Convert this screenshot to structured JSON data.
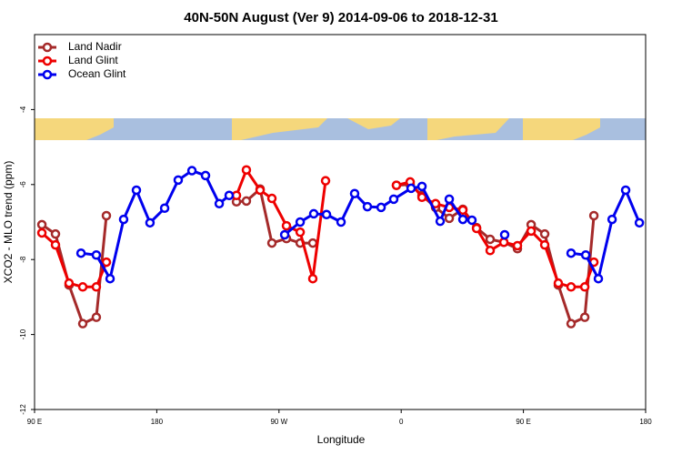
{
  "chart_data": {
    "type": "line",
    "title": "40N-50N August (Ver 9)   2014-09-06 to 2018-12-31",
    "x_label": "Longitude",
    "y_label": "XCO2 - MLO trend (ppm)",
    "xlim": [
      90,
      540
    ],
    "ylim": [
      -12,
      -2
    ],
    "xticks": [
      {
        "value": 90,
        "label": "90 E"
      },
      180,
      {
        "value": 270,
        "label": "90 W"
      },
      {
        "value": 360,
        "label": "0"
      },
      {
        "value": 450,
        "label": "90 E"
      },
      {
        "value": 540,
        "label": "180"
      }
    ],
    "yticks": [
      -4,
      -6,
      -8,
      -10,
      -12
    ],
    "legend": "top-left",
    "series": [
      {
        "name": "Land Nadir",
        "color": "#a52a2a",
        "x": [
          95.4,
          105.4,
          115.4,
          125.5,
          135.5,
          142.9,
          null,
          238.7,
          246,
          256.1,
          264.8,
          275.5,
          285.6,
          294.9,
          null,
          356.5,
          366.6,
          375.3,
          385.3,
          395.4,
          405.4,
          415.5,
          425.5,
          435.6,
          445.6,
          455.7,
          465.7,
          475.7,
          485.1,
          495.2,
          501.9
        ],
        "values": [
          -7.07,
          -7.32,
          -8.68,
          -9.71,
          -9.54,
          -6.83,
          null,
          -6.46,
          -6.44,
          -6.12,
          -7.56,
          -7.44,
          -7.56,
          -7.56,
          null,
          -6.02,
          -6.0,
          -6.29,
          -6.61,
          -6.9,
          -6.66,
          -7.15,
          -7.46,
          -7.54,
          -7.71,
          -7.07,
          -7.32,
          -8.68,
          -9.71,
          -9.54,
          -6.83
        ]
      },
      {
        "name": "Land Glint",
        "color": "#ee0000",
        "x": [
          95.4,
          105.4,
          115.4,
          125.5,
          135.5,
          142.9,
          null,
          238.7,
          246,
          256.1,
          264.8,
          275.5,
          285.6,
          294.9,
          304.3,
          null,
          356.5,
          366.6,
          375.3,
          385.3,
          395.4,
          405.4,
          415.5,
          425.5,
          435.6,
          445.6,
          455.7,
          465.7,
          475.7,
          485.1,
          495.2,
          501.9
        ],
        "values": [
          -7.29,
          -7.61,
          -8.63,
          -8.73,
          -8.73,
          -8.07,
          null,
          -6.29,
          -5.61,
          -6.15,
          -6.37,
          -7.1,
          -7.27,
          -8.51,
          -5.9,
          null,
          -6.02,
          -5.93,
          -6.34,
          -6.51,
          -6.61,
          -6.68,
          -7.17,
          -7.76,
          -7.54,
          -7.63,
          -7.24,
          -7.61,
          -8.63,
          -8.73,
          -8.73,
          -8.07
        ]
      },
      {
        "name": "Ocean Glint",
        "color": "#0000ee",
        "x": [
          124.2,
          135.5,
          145.6,
          155.6,
          165,
          175,
          185.8,
          195.8,
          205.9,
          215.9,
          226,
          233.3,
          null,
          274.2,
          285.6,
          295.6,
          305,
          315.7,
          325.7,
          335.1,
          345.2,
          354.5,
          367.3,
          375.3,
          388.7,
          395.4,
          405.4,
          412.1,
          null,
          436.2,
          null,
          485.1,
          495.9,
          505.2,
          515.3,
          525.3,
          535.4
        ],
        "values": [
          -7.83,
          -7.88,
          -8.51,
          -6.93,
          -6.15,
          -7.02,
          -6.63,
          -5.88,
          -5.63,
          -5.76,
          -6.51,
          -6.29,
          null,
          -7.34,
          -7.0,
          -6.78,
          -6.8,
          -7.0,
          -6.24,
          -6.59,
          -6.61,
          -6.39,
          -6.1,
          -6.05,
          -6.98,
          -6.39,
          -6.93,
          -6.95,
          null,
          -7.34,
          null,
          -7.83,
          -7.88,
          -8.51,
          -6.93,
          -6.15,
          -7.02
        ]
      }
    ]
  }
}
